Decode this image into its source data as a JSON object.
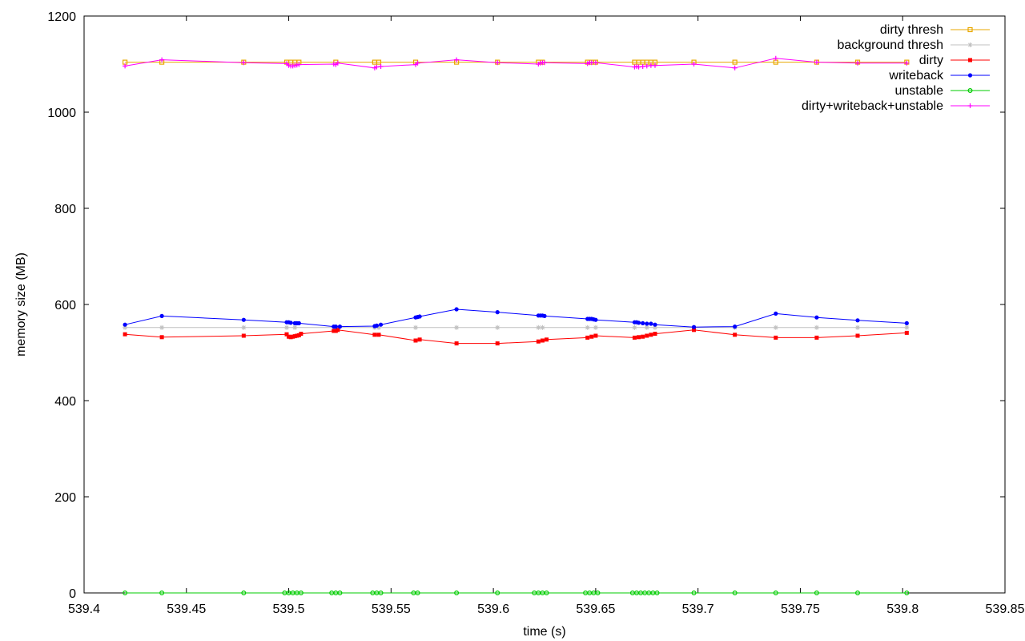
{
  "chart_data": {
    "type": "line",
    "title": "",
    "xlabel": "time (s)",
    "ylabel": "memory size (MB)",
    "xlim": [
      539.4,
      539.85
    ],
    "ylim": [
      0,
      1200
    ],
    "xticks": [
      "539.4",
      "539.45",
      "539.5",
      "539.55",
      "539.6",
      "539.65",
      "539.7",
      "539.75",
      "539.8",
      "539.85"
    ],
    "yticks": [
      "0",
      "200",
      "400",
      "600",
      "800",
      "1000",
      "1200"
    ],
    "grid": false,
    "legend_position": "top-right",
    "series": [
      {
        "name": "dirty thresh",
        "color": "#e8a800",
        "marker": "square-open",
        "x": [
          539.42,
          539.438,
          539.478,
          539.499,
          539.501,
          539.503,
          539.505,
          539.523,
          539.542,
          539.544,
          539.562,
          539.582,
          539.602,
          539.622,
          539.624,
          539.646,
          539.648,
          539.65,
          539.669,
          539.671,
          539.673,
          539.675,
          539.677,
          539.679,
          539.698,
          539.718,
          539.738,
          539.758,
          539.778,
          539.802
        ],
        "y": [
          1104,
          1104,
          1104,
          1104,
          1104,
          1104,
          1104,
          1104,
          1104,
          1104,
          1104,
          1104,
          1104,
          1104,
          1104,
          1104,
          1104,
          1104,
          1104,
          1104,
          1104,
          1104,
          1104,
          1104,
          1104,
          1104,
          1104,
          1104,
          1104,
          1104
        ]
      },
      {
        "name": "background thresh",
        "color": "#c0c0c0",
        "marker": "star",
        "x": [
          539.42,
          539.438,
          539.478,
          539.499,
          539.503,
          539.523,
          539.542,
          539.544,
          539.562,
          539.582,
          539.602,
          539.622,
          539.624,
          539.646,
          539.65,
          539.669,
          539.675,
          539.679,
          539.698,
          539.718,
          539.738,
          539.758,
          539.778,
          539.802
        ],
        "y": [
          552,
          552,
          552,
          552,
          552,
          552,
          552,
          552,
          552,
          552,
          552,
          552,
          552,
          552,
          552,
          552,
          552,
          552,
          552,
          552,
          552,
          552,
          552,
          552
        ]
      },
      {
        "name": "dirty",
        "color": "#ff0000",
        "marker": "square-filled",
        "x": [
          539.42,
          539.438,
          539.478,
          539.499,
          539.5,
          539.501,
          539.502,
          539.503,
          539.504,
          539.505,
          539.506,
          539.522,
          539.523,
          539.524,
          539.542,
          539.544,
          539.562,
          539.564,
          539.582,
          539.602,
          539.622,
          539.624,
          539.626,
          539.646,
          539.648,
          539.65,
          539.669,
          539.671,
          539.673,
          539.675,
          539.677,
          539.679,
          539.698,
          539.718,
          539.738,
          539.758,
          539.778,
          539.802
        ],
        "y": [
          538,
          532,
          535,
          538,
          533,
          532,
          533,
          534,
          535,
          536,
          539,
          545,
          545,
          547,
          537,
          537,
          525,
          527,
          519,
          519,
          523,
          525,
          527,
          531,
          533,
          535,
          531,
          532,
          533,
          535,
          537,
          539,
          547,
          537,
          531,
          531,
          535,
          541
        ]
      },
      {
        "name": "writeback",
        "color": "#0000ff",
        "marker": "circle-filled",
        "x": [
          539.42,
          539.438,
          539.478,
          539.499,
          539.5,
          539.501,
          539.503,
          539.504,
          539.505,
          539.522,
          539.523,
          539.525,
          539.542,
          539.543,
          539.545,
          539.562,
          539.563,
          539.564,
          539.582,
          539.602,
          539.622,
          539.623,
          539.624,
          539.625,
          539.646,
          539.647,
          539.648,
          539.649,
          539.65,
          539.669,
          539.67,
          539.671,
          539.673,
          539.675,
          539.677,
          539.679,
          539.698,
          539.718,
          539.738,
          539.758,
          539.778,
          539.802
        ],
        "y": [
          558,
          576,
          568,
          563,
          563,
          562,
          561,
          561,
          561,
          554,
          554,
          554,
          555,
          556,
          558,
          573,
          574,
          575,
          590,
          584,
          577,
          577,
          577,
          576,
          570,
          570,
          570,
          569,
          568,
          563,
          563,
          562,
          561,
          560,
          560,
          558,
          553,
          554,
          581,
          573,
          567,
          561
        ]
      },
      {
        "name": "unstable",
        "color": "#00cc00",
        "marker": "circle-open",
        "x": [
          539.42,
          539.438,
          539.478,
          539.498,
          539.5,
          539.502,
          539.504,
          539.506,
          539.521,
          539.523,
          539.525,
          539.541,
          539.543,
          539.545,
          539.561,
          539.563,
          539.582,
          539.602,
          539.62,
          539.622,
          539.624,
          539.626,
          539.645,
          539.647,
          539.649,
          539.651,
          539.668,
          539.67,
          539.672,
          539.674,
          539.676,
          539.678,
          539.68,
          539.698,
          539.718,
          539.738,
          539.758,
          539.778,
          539.802
        ],
        "y": [
          0,
          0,
          0,
          0,
          0,
          0,
          0,
          0,
          0,
          0,
          0,
          0,
          0,
          0,
          0,
          0,
          0,
          0,
          0,
          0,
          0,
          0,
          0,
          0,
          0,
          0,
          0,
          0,
          0,
          0,
          0,
          0,
          0,
          0,
          0,
          0,
          0,
          0,
          0
        ]
      },
      {
        "name": "dirty+writeback+unstable",
        "color": "#ff00ff",
        "marker": "plus",
        "x": [
          539.42,
          539.438,
          539.478,
          539.499,
          539.5,
          539.501,
          539.502,
          539.503,
          539.504,
          539.505,
          539.522,
          539.523,
          539.524,
          539.542,
          539.543,
          539.545,
          539.562,
          539.563,
          539.582,
          539.602,
          539.622,
          539.623,
          539.624,
          539.625,
          539.646,
          539.647,
          539.648,
          539.65,
          539.669,
          539.67,
          539.671,
          539.673,
          539.675,
          539.677,
          539.679,
          539.698,
          539.718,
          539.738,
          539.758,
          539.778,
          539.802
        ],
        "y": [
          1096,
          1109,
          1103,
          1101,
          1097,
          1096,
          1096,
          1097,
          1098,
          1099,
          1100,
          1099,
          1102,
          1092,
          1094,
          1095,
          1099,
          1102,
          1109,
          1103,
          1100,
          1102,
          1103,
          1103,
          1101,
          1103,
          1103,
          1103,
          1094,
          1095,
          1094,
          1095,
          1096,
          1097,
          1097,
          1100,
          1092,
          1112,
          1104,
          1102,
          1102
        ]
      }
    ]
  }
}
